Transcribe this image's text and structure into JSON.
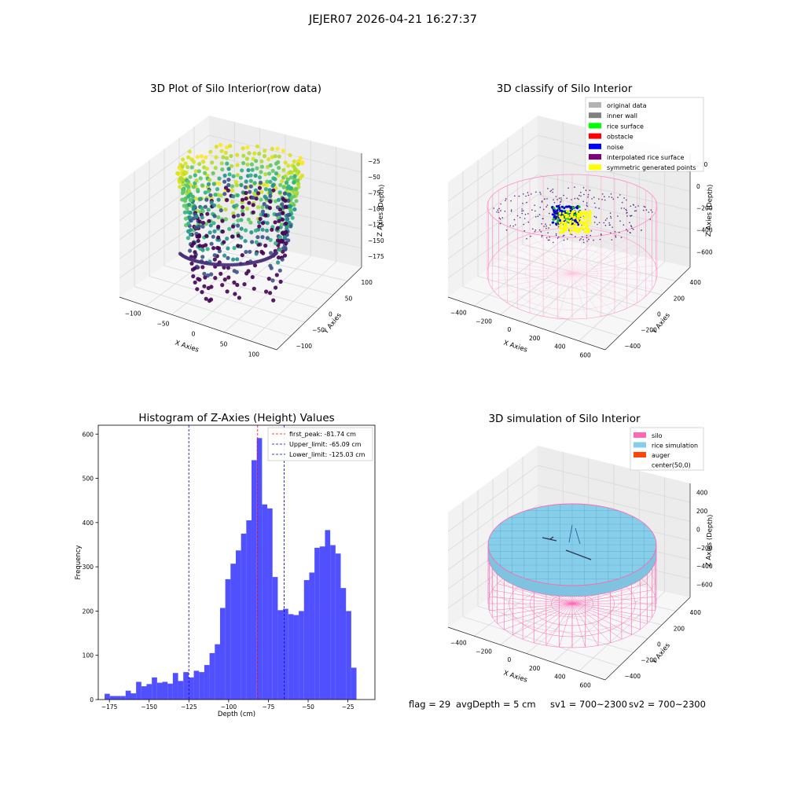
{
  "suptitle": "JEJER07 2026-04-21 16:27:37",
  "chart_data": [
    {
      "type": "scatter",
      "title": "3D Plot of Silo Interior(row data)",
      "xlabel": "X Axies",
      "ylabel": "Y Axies",
      "zlabel": "Z Axies (Depth)",
      "x_ticks": [
        "−100",
        "−50",
        "0",
        "50",
        "100"
      ],
      "y_ticks": [
        "−100",
        "−50",
        "0",
        "50",
        "100"
      ],
      "z_ticks": [
        "−25",
        "−50",
        "−75",
        "−100",
        "−125",
        "−150",
        "−175"
      ],
      "colormap": "viridis"
    },
    {
      "type": "scatter",
      "title": "3D classify of Silo Interior",
      "xlabel": "X Axies",
      "ylabel": "Y Axies",
      "zlabel": "Z Axies (Depth)",
      "x_ticks": [
        "−400",
        "−200",
        "0",
        "200",
        "400",
        "600"
      ],
      "y_ticks": [
        "−400",
        "−200",
        "0",
        "200",
        "400"
      ],
      "z_ticks": [
        "200",
        "0",
        "−200",
        "−400",
        "−600"
      ],
      "legend": [
        {
          "label": "original data",
          "color": "#b3b3b3"
        },
        {
          "label": "inner wall",
          "color": "#808080"
        },
        {
          "label": "rice surface",
          "color": "#00ff00"
        },
        {
          "label": "obstacle",
          "color": "#ff0000"
        },
        {
          "label": "noise",
          "color": "#0000ff"
        },
        {
          "label": "interpolated rice surface",
          "color": "#800080"
        },
        {
          "label": "symmetric generated points",
          "color": "#ffff00"
        }
      ],
      "legend_position": "upper-right"
    },
    {
      "type": "bar",
      "title": "Histogram of Z-Axies (Height) Values",
      "xlabel": "Depth (cm)",
      "ylabel": "Frequency",
      "xlim": [
        -182,
        -8
      ],
      "ylim": [
        0,
        620
      ],
      "x_ticks": [
        "−175",
        "−150",
        "−125",
        "−100",
        "−75",
        "−50",
        "−25"
      ],
      "x_tick_values": [
        -175,
        -150,
        -125,
        -100,
        -75,
        -50,
        -25
      ],
      "y_ticks": [
        "0",
        "100",
        "200",
        "300",
        "400",
        "500",
        "600"
      ],
      "y_tick_values": [
        0,
        100,
        200,
        300,
        400,
        500,
        600
      ],
      "bar_color": "#4c4cff",
      "bin_start": -178,
      "bin_width": 3.3,
      "values": [
        13,
        8,
        8,
        8,
        20,
        14,
        40,
        30,
        35,
        50,
        38,
        40,
        36,
        60,
        42,
        62,
        50,
        65,
        62,
        78,
        105,
        125,
        207,
        272,
        307,
        337,
        375,
        405,
        541,
        591,
        441,
        432,
        277,
        202,
        205,
        193,
        191,
        200,
        270,
        287,
        343,
        346,
        383,
        349,
        330,
        252,
        200,
        72
      ],
      "vlines": [
        {
          "label": "first_peak: -81.74 cm",
          "x": -81.74,
          "color": "#ff0000"
        },
        {
          "label": "Upper_limit: -65.09 cm",
          "x": -65.09,
          "color": "#0000cc"
        },
        {
          "label": "Lower_limit: -125.03 cm",
          "x": -125.03,
          "color": "#0000cc"
        }
      ],
      "legend_position": "upper-right"
    },
    {
      "type": "scatter",
      "title": "3D simulation of Silo Interior",
      "xlabel": "X Axies",
      "ylabel": "Y Axies",
      "zlabel": "Z Axies (Depth)",
      "x_ticks": [
        "−400",
        "−200",
        "0",
        "200",
        "400",
        "600"
      ],
      "y_ticks": [
        "−400",
        "−200",
        "0",
        "200",
        "400"
      ],
      "z_ticks": [
        "400",
        "200",
        "0",
        "−200",
        "−400",
        "−600"
      ],
      "legend": [
        {
          "label": "silo",
          "color": "#ff69b4"
        },
        {
          "label": "rice simulation",
          "color": "#87ceeb"
        },
        {
          "label": "auger",
          "color": "#ff4500"
        },
        {
          "label": "center(50,0)",
          "color": ""
        }
      ],
      "legend_position": "upper-right"
    }
  ],
  "status": {
    "flag": "flag = 29",
    "avg_depth": "avgDepth = 5 cm",
    "sv1": "sv1 = 700~2300",
    "sv2": "sv2 = 700~2300"
  }
}
